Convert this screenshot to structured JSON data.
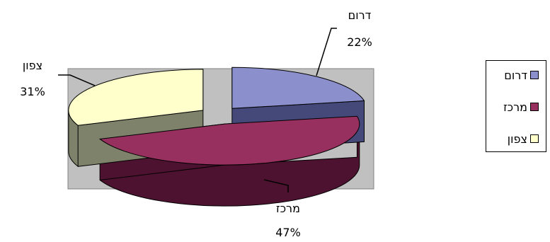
{
  "chart_data": {
    "type": "pie",
    "style": "3d-exploded",
    "categories": [
      "דרום",
      "מרכז",
      "צפון"
    ],
    "values": [
      22,
      47,
      31
    ],
    "value_labels": [
      "22%",
      "47%",
      "31%"
    ],
    "colors": {
      "top": [
        "#8B8FCC",
        "#98305F",
        "#FFFFCC"
      ],
      "side": [
        "#45497A",
        "#4D1230",
        "#7F826B"
      ]
    },
    "plot_background": "#C0C0C0",
    "legend": {
      "placement": "right",
      "entries": [
        "דרום",
        "מרכז",
        "צפון"
      ]
    }
  }
}
